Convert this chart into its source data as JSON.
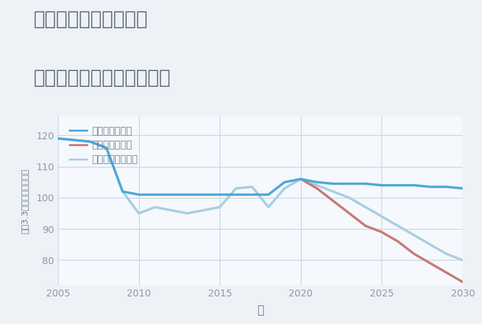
{
  "title_line1": "奈良県橿原市忌部町の",
  "title_line2": "中古マンションの価格推移",
  "xlabel": "年",
  "ylabel": "坪（3.3㎡）単価（万円）",
  "background_color": "#eef2f7",
  "plot_bg_color": "#f5f8fc",
  "grid_color": "#c5d5e5",
  "xlim": [
    2005,
    2030
  ],
  "ylim": [
    72,
    126
  ],
  "yticks": [
    80,
    90,
    100,
    110,
    120
  ],
  "xticks": [
    2005,
    2010,
    2015,
    2020,
    2025,
    2030
  ],
  "good_scenario": {
    "label": "グッドシナリオ",
    "color": "#4da8d8",
    "linewidth": 2.5,
    "x": [
      2005,
      2007,
      2008,
      2009,
      2010,
      2011,
      2012,
      2013,
      2014,
      2015,
      2016,
      2017,
      2018,
      2019,
      2020,
      2021,
      2022,
      2023,
      2024,
      2025,
      2026,
      2027,
      2028,
      2029,
      2030
    ],
    "y": [
      119,
      118,
      116,
      102,
      101,
      101,
      101,
      101,
      101,
      101,
      101,
      101,
      101,
      105,
      106,
      105,
      104.5,
      104.5,
      104.5,
      104,
      104,
      104,
      103.5,
      103.5,
      103
    ]
  },
  "bad_scenario": {
    "label": "バッドシナリオ",
    "color": "#c87878",
    "linewidth": 2.5,
    "x": [
      2020,
      2021,
      2022,
      2023,
      2024,
      2025,
      2026,
      2027,
      2028,
      2029,
      2030
    ],
    "y": [
      106,
      103,
      99,
      95,
      91,
      89,
      86,
      82,
      79,
      76,
      73
    ]
  },
  "normal_scenario": {
    "label": "ノーマルシナリオ",
    "color": "#a8cee0",
    "linewidth": 2.5,
    "x": [
      2005,
      2007,
      2008,
      2009,
      2010,
      2011,
      2012,
      2013,
      2014,
      2015,
      2016,
      2017,
      2018,
      2019,
      2020,
      2021,
      2022,
      2023,
      2024,
      2025,
      2026,
      2027,
      2028,
      2029,
      2030
    ],
    "y": [
      119,
      118,
      116,
      102,
      95,
      97,
      96,
      95,
      96,
      97,
      103,
      103.5,
      97,
      103,
      106,
      104,
      102,
      100,
      97,
      94,
      91,
      88,
      85,
      82,
      80
    ]
  },
  "title_color": "#5a6a7a",
  "title_fontsize": 20,
  "legend_fontsize": 10,
  "axis_label_color": "#6a7a8a",
  "tick_color": "#8a9aaa",
  "tick_fontsize": 10
}
